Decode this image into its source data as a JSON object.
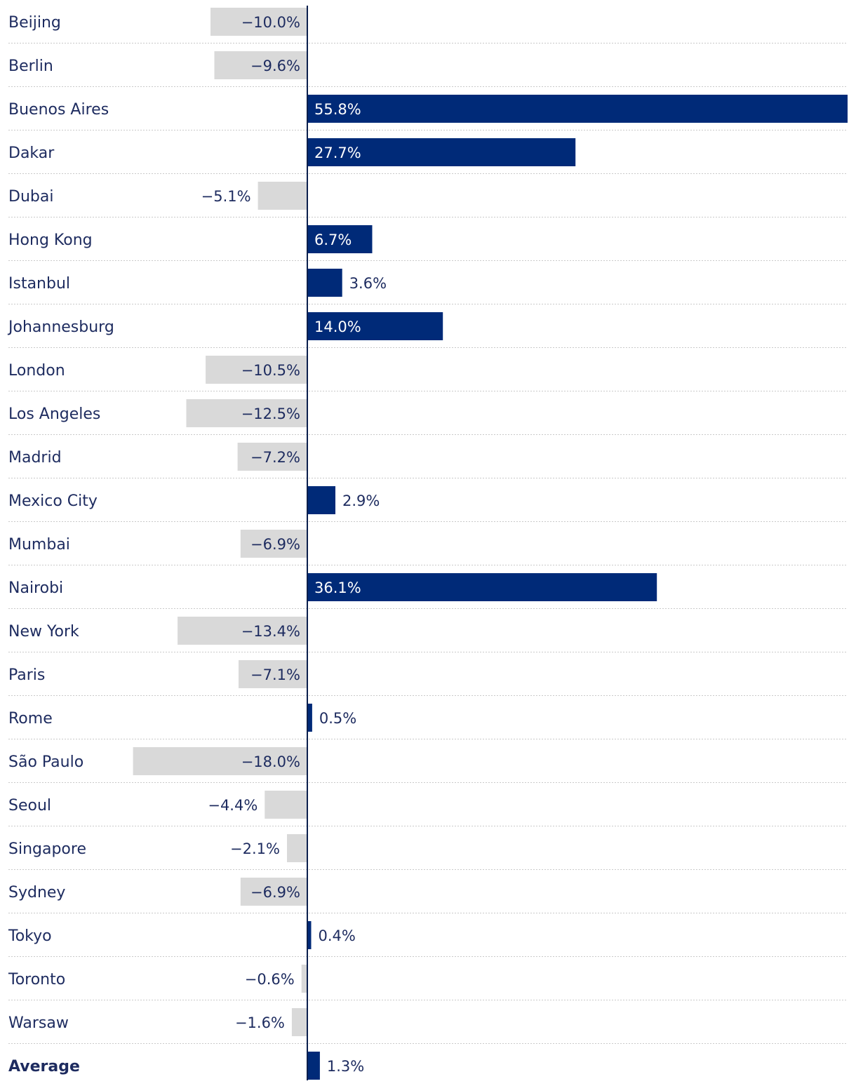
{
  "chart_data": {
    "type": "bar",
    "orientation": "horizontal",
    "categories": [
      "Beijing",
      "Berlin",
      "Buenos Aires",
      "Dakar",
      "Dubai",
      "Hong Kong",
      "Istanbul",
      "Johannesburg",
      "London",
      "Los Angeles",
      "Madrid",
      "Mexico City",
      "Mumbai",
      "Nairobi",
      "New York",
      "Paris",
      "Rome",
      "São Paulo",
      "Seoul",
      "Singapore",
      "Sydney",
      "Tokyo",
      "Toronto",
      "Warsaw",
      "Average"
    ],
    "values": [
      -10.0,
      -9.6,
      55.8,
      27.7,
      -5.1,
      6.7,
      3.6,
      14.0,
      -10.5,
      -12.5,
      -7.2,
      2.9,
      -6.9,
      36.1,
      -13.4,
      -7.1,
      0.5,
      -18.0,
      -4.4,
      -2.1,
      -6.9,
      0.4,
      -0.6,
      -1.6,
      1.3
    ],
    "value_labels": [
      "−10.0%",
      "−9.6%",
      "55.8%",
      "27.7%",
      "−5.1%",
      "6.7%",
      "3.6%",
      "14.0%",
      "−10.5%",
      "−12.5%",
      "−7.2%",
      "2.9%",
      "−6.9%",
      "36.1%",
      "−13.4%",
      "−7.1%",
      "0.5%",
      "−18.0%",
      "−4.4%",
      "−2.1%",
      "−6.9%",
      "0.4%",
      "−0.6%",
      "−1.6%",
      "1.3%"
    ],
    "highlighted_category": "Average",
    "xlim": [
      -31,
      55.8
    ],
    "grid": false,
    "legend": "none",
    "colors": {
      "positive": "#002a78",
      "negative": "#d9d9d9",
      "label_dark": "#1d2b5f",
      "label_on_bar": "#ffffff"
    }
  }
}
